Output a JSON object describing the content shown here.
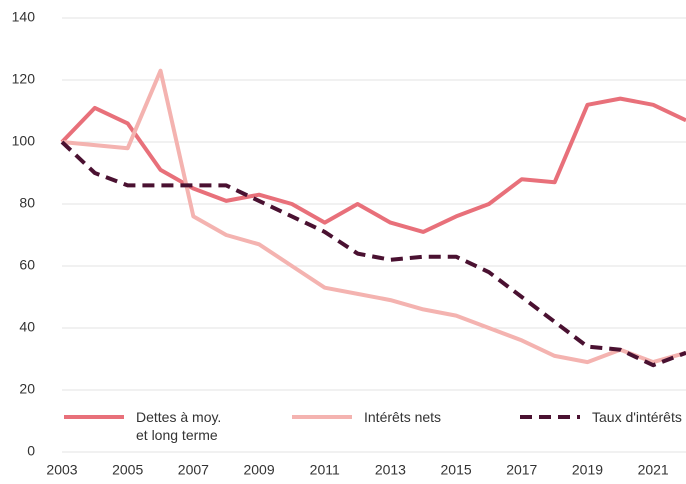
{
  "chart_data": {
    "type": "line",
    "x": [
      2003,
      2004,
      2005,
      2006,
      2007,
      2008,
      2009,
      2010,
      2011,
      2012,
      2013,
      2014,
      2015,
      2016,
      2017,
      2018,
      2019,
      2020,
      2021,
      2022
    ],
    "series": [
      {
        "name": "Dettes à moy. et long terme",
        "color": "#e8707a",
        "dash": false,
        "values": [
          100,
          111,
          106,
          91,
          85,
          81,
          83,
          80,
          74,
          80,
          74,
          71,
          76,
          80,
          88,
          87,
          112,
          114,
          112,
          107
        ]
      },
      {
        "name": "Intérêts nets",
        "color": "#f4b3b0",
        "dash": false,
        "values": [
          100,
          99,
          98,
          123,
          76,
          70,
          67,
          60,
          53,
          51,
          49,
          46,
          44,
          40,
          36,
          31,
          29,
          33,
          29,
          32
        ]
      },
      {
        "name": "Taux d'intérêts",
        "color": "#4a1131",
        "dash": true,
        "values": [
          100,
          90,
          86,
          86,
          86,
          86,
          81,
          76,
          71,
          64,
          62,
          63,
          63,
          58,
          50,
          42,
          34,
          33,
          28,
          32
        ]
      }
    ],
    "xlim": [
      2003,
      2022
    ],
    "xticks": [
      2003,
      2005,
      2007,
      2009,
      2011,
      2013,
      2015,
      2017,
      2019,
      2021
    ],
    "ylim": [
      0,
      140
    ],
    "yticks": [
      0,
      20,
      40,
      60,
      80,
      100,
      120,
      140
    ],
    "grid": true,
    "legend": "bottom"
  }
}
